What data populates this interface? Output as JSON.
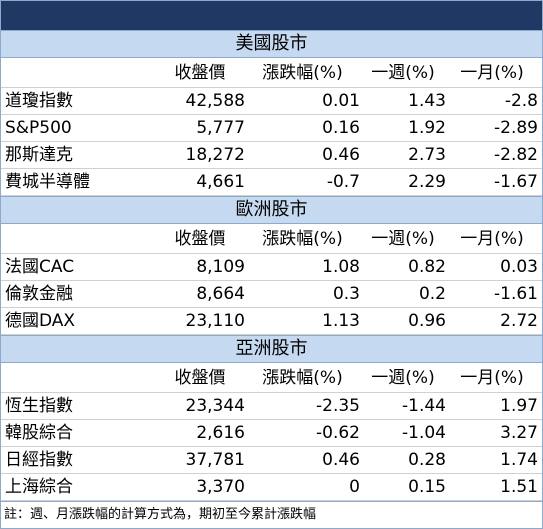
{
  "sections": [
    {
      "title": "美國股市",
      "headers": [
        "收盤價",
        "漲跌幅(%)",
        "一週(%)",
        "一月(%)"
      ],
      "rows": [
        [
          "道瓊指數",
          "42,588",
          "0.01",
          "1.43",
          "-2.8"
        ],
        [
          "S&P500",
          "5,777",
          "0.16",
          "1.92",
          "-2.89"
        ],
        [
          "那斯達克",
          "18,272",
          "0.46",
          "2.73",
          "-2.82"
        ],
        [
          "費城半導體",
          "4,661",
          "-0.7",
          "2.29",
          "-1.67"
        ]
      ]
    },
    {
      "title": "歐洲股市",
      "headers": [
        "收盤價",
        "漲跌幅(%)",
        "一週(%)",
        "一月(%)"
      ],
      "rows": [
        [
          "法國CAC",
          "8,109",
          "1.08",
          "0.82",
          "0.03"
        ],
        [
          "倫敦金融",
          "8,664",
          "0.3",
          "0.2",
          "-1.61"
        ],
        [
          "德國DAX",
          "23,110",
          "1.13",
          "0.96",
          "2.72"
        ]
      ]
    },
    {
      "title": "亞洲股市",
      "headers": [
        "收盤價",
        "漲跌幅(%)",
        "一週(%)",
        "一月(%)"
      ],
      "rows": [
        [
          "恆生指數",
          "23,344",
          "-2.35",
          "-1.44",
          "1.97"
        ],
        [
          "韓股綜合",
          "2,616",
          "-0.62",
          "-1.04",
          "3.27"
        ],
        [
          "日經指數",
          "37,781",
          "0.46",
          "0.28",
          "1.74"
        ],
        [
          "上海綜合",
          "3,370",
          "0",
          "0.15",
          "1.51"
        ]
      ]
    }
  ],
  "note": "註：週、月漲跌幅的計算方式為，期初至今累計漲跌幅"
}
